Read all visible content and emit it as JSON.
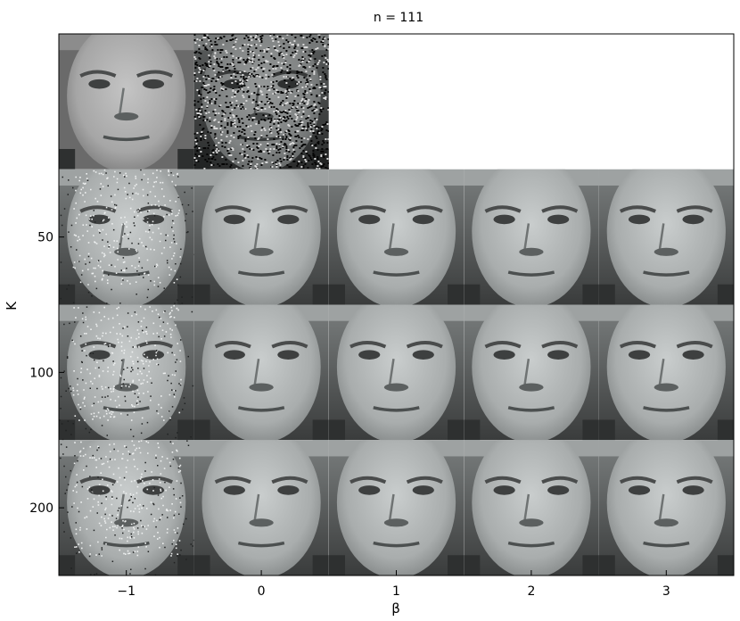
{
  "title": "n = 111",
  "xlabel": "β",
  "ylabel": "K",
  "x_ticks": [
    "−1",
    "0",
    "1",
    "2",
    "3"
  ],
  "y_ticks": [
    "50",
    "100",
    "200"
  ],
  "rows": [
    {
      "label": "",
      "cells": [
        {
          "kind": "original",
          "shade": "#9a9a9a"
        },
        {
          "kind": "noisy",
          "shade": "#6e6e6e"
        }
      ]
    },
    {
      "label": "50",
      "cells": [
        {
          "kind": "speckled",
          "shade": "#a3a7a7"
        },
        {
          "kind": "smooth",
          "shade": "#a5a9a9"
        },
        {
          "kind": "smooth",
          "shade": "#a7abab"
        },
        {
          "kind": "smooth",
          "shade": "#a7abab"
        },
        {
          "kind": "smooth",
          "shade": "#a8acac"
        }
      ]
    },
    {
      "label": "100",
      "cells": [
        {
          "kind": "speckled",
          "shade": "#a3a7a7"
        },
        {
          "kind": "smooth",
          "shade": "#a5a9a9"
        },
        {
          "kind": "smooth",
          "shade": "#a7abab"
        },
        {
          "kind": "smooth",
          "shade": "#a7abab"
        },
        {
          "kind": "smooth",
          "shade": "#a8acac"
        }
      ]
    },
    {
      "label": "200",
      "cells": [
        {
          "kind": "speckled",
          "shade": "#a3a7a7"
        },
        {
          "kind": "smooth",
          "shade": "#a5a9a9"
        },
        {
          "kind": "smooth",
          "shade": "#a7abab"
        },
        {
          "kind": "smooth",
          "shade": "#a7abab"
        },
        {
          "kind": "smooth",
          "shade": "#a8acac"
        }
      ]
    }
  ]
}
